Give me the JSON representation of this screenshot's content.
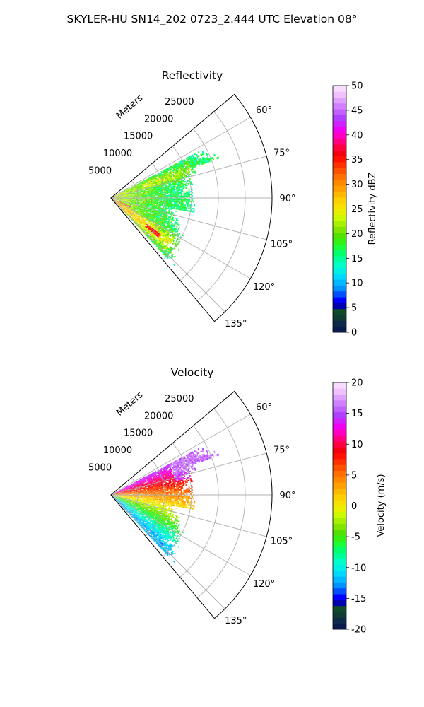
{
  "figure_title": "SKYLER-HU  SN14_202  0723_2.444 UTC Elevation 08°",
  "chart_data": [
    {
      "type": "radar-ppi-sector",
      "title": "Reflectivity",
      "range_axis_label": "Meters",
      "range_ticks": [
        5000,
        10000,
        15000,
        20000,
        25000
      ],
      "range_tick_labels": [
        "5000",
        "10000",
        "15000",
        "20000",
        "25000"
      ],
      "range_max": 30000,
      "azimuth_ticks": [
        60,
        75,
        90,
        105,
        120,
        135
      ],
      "azimuth_tick_labels": [
        "60°",
        "75°",
        "90°",
        "105°",
        "120°",
        "135°"
      ],
      "azimuth_range": [
        50,
        140
      ],
      "grid": true,
      "colorbar": {
        "label": "Reflectivity dBZ",
        "min": 0,
        "max": 50,
        "ticks": [
          0,
          5,
          10,
          15,
          20,
          25,
          30,
          35,
          40,
          45,
          50
        ],
        "tick_labels": [
          "0",
          "5",
          "10",
          "15",
          "20",
          "25",
          "30",
          "35",
          "40",
          "45",
          "50"
        ],
        "colors": [
          "#0a1a4a",
          "#0d2a4a",
          "#0f3d33",
          "#0f4a2a",
          "#0000b0",
          "#0000ff",
          "#0050ff",
          "#0090ff",
          "#00b8ff",
          "#00d8ff",
          "#00f0e6",
          "#00ffc8",
          "#00ff9c",
          "#00ff6a",
          "#1aff3a",
          "#35ef10",
          "#55e000",
          "#80e600",
          "#a6f000",
          "#ccfa00",
          "#e8f000",
          "#f8e000",
          "#ffd000",
          "#ffb800",
          "#ffa000",
          "#ff8800",
          "#ff7000",
          "#ff5000",
          "#ff3000",
          "#ff1000",
          "#f00010",
          "#ff0040",
          "#ff0080",
          "#ff00c0",
          "#f000f0",
          "#d020ff",
          "#b040ff",
          "#c060ff",
          "#d080ff",
          "#e0a0ff",
          "#f0c0ff",
          "#f8dcff"
        ]
      }
    },
    {
      "type": "radar-ppi-sector",
      "title": "Velocity",
      "range_axis_label": "Meters",
      "range_ticks": [
        5000,
        10000,
        15000,
        20000,
        25000
      ],
      "range_tick_labels": [
        "5000",
        "10000",
        "15000",
        "20000",
        "25000"
      ],
      "range_max": 30000,
      "azimuth_ticks": [
        60,
        75,
        90,
        105,
        120,
        135
      ],
      "azimuth_tick_labels": [
        "60°",
        "75°",
        "90°",
        "105°",
        "120°",
        "135°"
      ],
      "azimuth_range": [
        50,
        140
      ],
      "grid": true,
      "colorbar": {
        "label": "Velocity (m/s)",
        "min": -20,
        "max": 20,
        "ticks": [
          -20,
          -15,
          -10,
          -5,
          0,
          5,
          10,
          15,
          20
        ],
        "tick_labels": [
          "-20",
          "-15",
          "-10",
          "-5",
          "0",
          "5",
          "10",
          "15",
          "20"
        ],
        "colors": [
          "#0a1a4a",
          "#0d2a4a",
          "#0f3d33",
          "#0f4a2a",
          "#0000b0",
          "#0000ff",
          "#0050ff",
          "#0090ff",
          "#00b8ff",
          "#00d8ff",
          "#00f0e6",
          "#00ffc8",
          "#00ff9c",
          "#00ff6a",
          "#1aff3a",
          "#35ef10",
          "#55e000",
          "#80e600",
          "#a6f000",
          "#ccfa00",
          "#e8f000",
          "#f8e000",
          "#ffd000",
          "#ffb800",
          "#ffa000",
          "#ff8800",
          "#ff7000",
          "#ff5000",
          "#ff3000",
          "#ff1000",
          "#f00010",
          "#ff0040",
          "#ff0080",
          "#ff00c0",
          "#f000f0",
          "#d020ff",
          "#b040ff",
          "#c060ff",
          "#d080ff",
          "#e0a0ff",
          "#f0c0ff",
          "#f8dcff"
        ]
      }
    }
  ]
}
